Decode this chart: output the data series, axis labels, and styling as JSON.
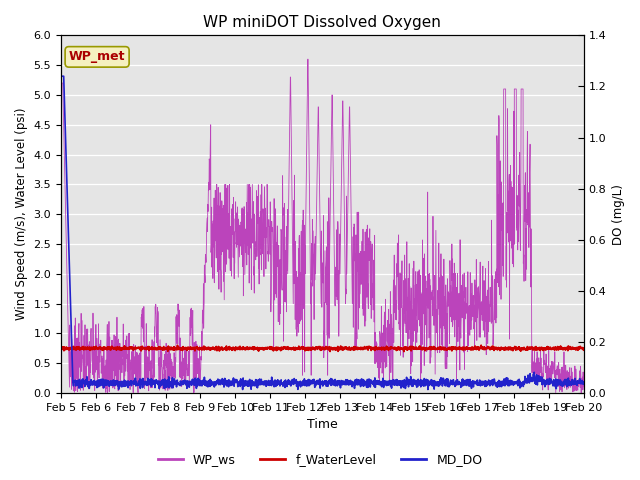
{
  "title": "WP miniDOT Dissolved Oxygen",
  "xlabel": "Time",
  "ylabel_left": "Wind Speed (m/s), Water Level (psi)",
  "ylabel_right": "DO (mg/L)",
  "ylim_left": [
    0.0,
    6.0
  ],
  "ylim_right": [
    0.0,
    1.4
  ],
  "yticks_left": [
    0.0,
    0.5,
    1.0,
    1.5,
    2.0,
    2.5,
    3.0,
    3.5,
    4.0,
    4.5,
    5.0,
    5.5,
    6.0
  ],
  "yticks_right": [
    0.0,
    0.2,
    0.4,
    0.6,
    0.8,
    1.0,
    1.2,
    1.4
  ],
  "bg_color": "#e5e5e5",
  "fig_color": "#ffffff",
  "annotation_text": "WP_met",
  "annotation_bg": "#f5f0c0",
  "annotation_border": "#999900",
  "annotation_text_color": "#aa0000",
  "legend_labels": [
    "WP_ws",
    "f_WaterLevel",
    "MD_DO"
  ],
  "line_ws_color": "#bb44bb",
  "line_wl_color": "#cc0000",
  "line_do_color": "#2222cc",
  "x_tick_labels": [
    "Feb 5",
    "Feb 6",
    "Feb 7",
    "Feb 8",
    "Feb 9",
    "Feb 10",
    "Feb 11",
    "Feb 12",
    "Feb 13",
    "Feb 14",
    "Feb 15",
    "Feb 16",
    "Feb 17",
    "Feb 18",
    "Feb 19",
    "Feb 20"
  ],
  "n_days": 15,
  "pts_per_day": 144
}
